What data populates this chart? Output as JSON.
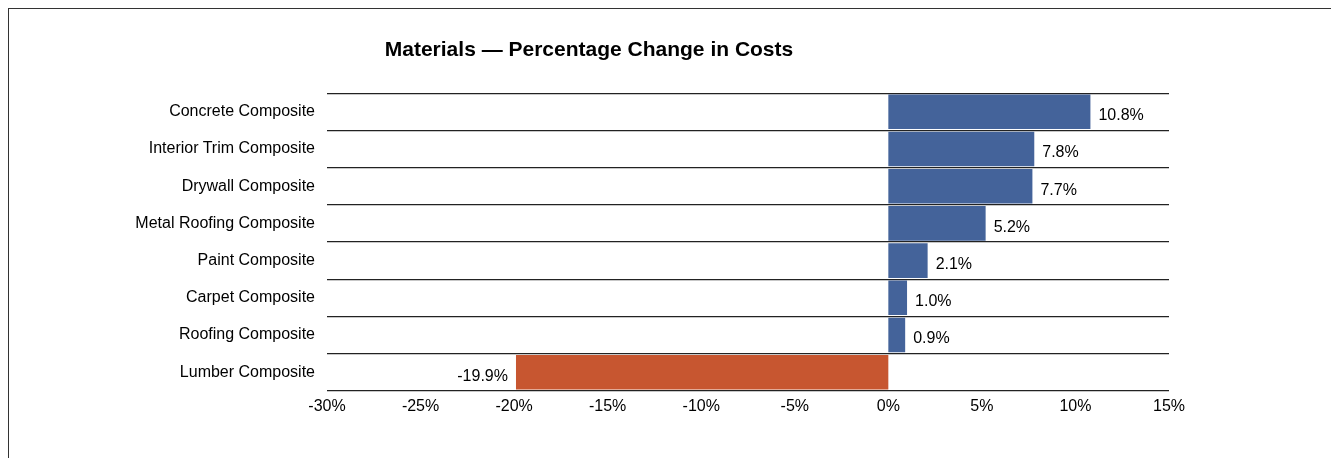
{
  "chart_data": {
    "type": "bar",
    "orientation": "horizontal",
    "title": "Materials — Percentage Change in Costs",
    "categories": [
      "Concrete Composite",
      "Interior Trim Composite",
      "Drywall Composite",
      "Metal Roofing Composite",
      "Paint Composite",
      "Carpet Composite",
      "Roofing Composite",
      "Lumber Composite"
    ],
    "values": [
      10.8,
      7.8,
      7.7,
      5.2,
      2.1,
      1.0,
      0.9,
      -19.9
    ],
    "colors": [
      "#44639a",
      "#44639a",
      "#44639a",
      "#44639a",
      "#44639a",
      "#44639a",
      "#44639a",
      "#c75630"
    ],
    "value_labels": [
      "10.8%",
      "7.8%",
      "7.7%",
      "5.2%",
      "2.1%",
      "1.0%",
      "0.9%",
      "-19.9%"
    ],
    "xlim": [
      -30,
      15
    ],
    "xticks": [
      {
        "value": -30,
        "label": "-30%"
      },
      {
        "value": -25,
        "label": "-25%"
      },
      {
        "value": -20,
        "label": "-20%"
      },
      {
        "value": -15,
        "label": "-15%"
      },
      {
        "value": -10,
        "label": "-10%"
      },
      {
        "value": -5,
        "label": "-5%"
      },
      {
        "value": 0,
        "label": "0%"
      },
      {
        "value": 5,
        "label": "5%"
      },
      {
        "value": 10,
        "label": "10%"
      },
      {
        "value": 15,
        "label": "15%"
      }
    ],
    "grid": "y",
    "legend": false
  }
}
